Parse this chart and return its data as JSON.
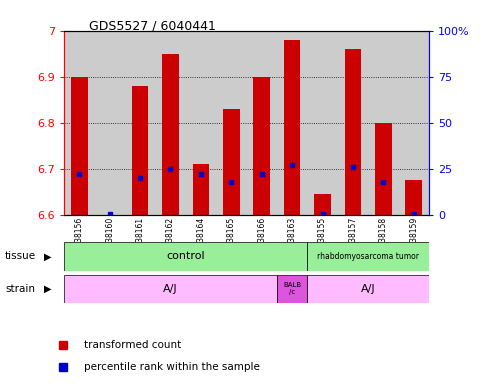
{
  "title": "GDS5527 / 6040441",
  "samples": [
    "GSM738156",
    "GSM738160",
    "GSM738161",
    "GSM738162",
    "GSM738164",
    "GSM738165",
    "GSM738166",
    "GSM738163",
    "GSM738155",
    "GSM738157",
    "GSM738158",
    "GSM738159"
  ],
  "transformed_count": [
    6.9,
    6.6,
    6.88,
    6.95,
    6.71,
    6.83,
    6.9,
    6.98,
    6.645,
    6.96,
    6.8,
    6.675
  ],
  "percentile_rank": [
    22,
    0.5,
    20,
    25,
    22,
    18,
    22,
    27,
    0.5,
    26,
    18,
    0.5
  ],
  "ymin": 6.6,
  "ymax": 7.0,
  "yticks_left": [
    6.6,
    6.7,
    6.8,
    6.9,
    7.0
  ],
  "ytick_labels_left": [
    "6.6",
    "6.7",
    "6.8",
    "6.9",
    "7"
  ],
  "right_yticks": [
    0,
    25,
    50,
    75,
    100
  ],
  "right_ytick_labels": [
    "0",
    "25",
    "50",
    "75",
    "100%"
  ],
  "bar_color": "#cc0000",
  "percentile_color": "#0000cc",
  "grid_lines": [
    6.7,
    6.8,
    6.9
  ],
  "bg_col_color": "#cccccc",
  "plot_bg": "#ffffff",
  "tissue_control_color": "#99ee99",
  "tissue_tumor_color": "#99ee99",
  "strain_aj_color": "#ffbbff",
  "strain_balb_color": "#dd55dd",
  "control_span": [
    0,
    8
  ],
  "tumor_span": [
    8,
    12
  ],
  "aj1_span": [
    0,
    7
  ],
  "balb_span": [
    7,
    8
  ],
  "aj2_span": [
    8,
    12
  ]
}
